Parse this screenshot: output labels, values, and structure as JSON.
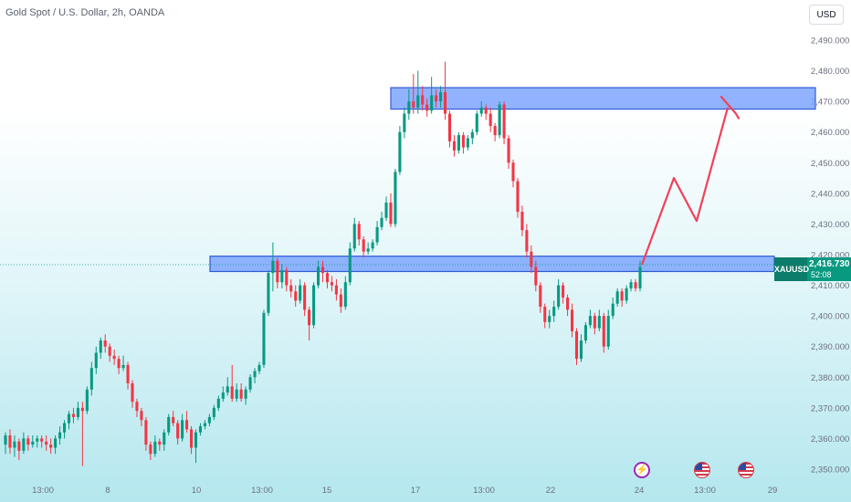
{
  "header": {
    "title": "Gold Spot / U.S. Dollar, 2h, OANDA",
    "currency": "USD"
  },
  "price_label": {
    "symbol": "XAUUSD",
    "price": "2,416.730",
    "countdown": "52:08"
  },
  "events": [
    {
      "icon": "lightning-bolt-icon"
    },
    {
      "icon": "us-flag-icon"
    },
    {
      "icon": "us-flag-icon"
    }
  ],
  "colors": {
    "up": "#089981",
    "down": "#f23645",
    "zone_fill": "#7ea6ff",
    "zone_border": "#2f5bd8",
    "arrow": "#f2405a"
  },
  "chart_data": {
    "type": "candlestick",
    "title": "Gold Spot / U.S. Dollar, 2h, OANDA",
    "y_axis": {
      "side": "right",
      "ylim": [
        2346,
        2497
      ],
      "ticks": [
        "2,350.000",
        "2,360.000",
        "2,370.000",
        "2,380.000",
        "2,390.000",
        "2,400.000",
        "2,410.000",
        "2,420.000",
        "2,430.000",
        "2,440.000",
        "2,450.000",
        "2,460.000",
        "2,470.000",
        "2,480.000",
        "2,490.000"
      ]
    },
    "x_axis": {
      "ticks": [
        "13:00",
        "8",
        "10",
        "13:00",
        "15",
        "17",
        "13:00",
        "22",
        "24",
        "13:00",
        "29"
      ]
    },
    "current_price": 2416.73,
    "zones": [
      {
        "name": "resistance",
        "low": 2467.5,
        "high": 2474.5
      },
      {
        "name": "support",
        "low": 2414.5,
        "high": 2419.5
      }
    ],
    "projection": [
      2416.7,
      2445,
      2431,
      2468,
      2466,
      2471.5,
      2469.5,
      2464.5
    ],
    "candles": [
      [
        2358,
        2361,
        2362,
        2355
      ],
      [
        2361,
        2357,
        2363,
        2355
      ],
      [
        2357,
        2359,
        2361,
        2354
      ],
      [
        2359,
        2356,
        2360,
        2353
      ],
      [
        2356,
        2360,
        2362,
        2355
      ],
      [
        2360,
        2358,
        2361,
        2356
      ],
      [
        2358,
        2359,
        2361,
        2357
      ],
      [
        2359,
        2360,
        2361,
        2357
      ],
      [
        2360,
        2359,
        2361,
        2357
      ],
      [
        2359,
        2358,
        2361,
        2356
      ],
      [
        2358,
        2357,
        2360,
        2355
      ],
      [
        2357,
        2360,
        2361,
        2355
      ],
      [
        2360,
        2362,
        2364,
        2358
      ],
      [
        2362,
        2365,
        2366,
        2360
      ],
      [
        2365,
        2368,
        2369,
        2363
      ],
      [
        2368,
        2367,
        2370,
        2365
      ],
      [
        2367,
        2370,
        2372,
        2366
      ],
      [
        2370,
        2369,
        2372,
        2351
      ],
      [
        2369,
        2376,
        2377,
        2368
      ],
      [
        2376,
        2383,
        2385,
        2374
      ],
      [
        2383,
        2388,
        2390,
        2381
      ],
      [
        2388,
        2392,
        2393,
        2386
      ],
      [
        2392,
        2390,
        2394,
        2388
      ],
      [
        2390,
        2387,
        2391,
        2385
      ],
      [
        2387,
        2386,
        2389,
        2384
      ],
      [
        2386,
        2383,
        2387,
        2381
      ],
      [
        2383,
        2384,
        2387,
        2382
      ],
      [
        2384,
        2378,
        2385,
        2376
      ],
      [
        2378,
        2372,
        2379,
        2370
      ],
      [
        2372,
        2369,
        2373,
        2367
      ],
      [
        2369,
        2366,
        2370,
        2364
      ],
      [
        2366,
        2358,
        2367,
        2356
      ],
      [
        2358,
        2355,
        2359,
        2353
      ],
      [
        2355,
        2359,
        2361,
        2354
      ],
      [
        2359,
        2358,
        2360,
        2356
      ],
      [
        2358,
        2362,
        2363,
        2356
      ],
      [
        2362,
        2367,
        2368,
        2361
      ],
      [
        2367,
        2365,
        2369,
        2364
      ],
      [
        2365,
        2360,
        2366,
        2358
      ],
      [
        2360,
        2366,
        2368,
        2359
      ],
      [
        2366,
        2363,
        2369,
        2362
      ],
      [
        2363,
        2357,
        2364,
        2355
      ],
      [
        2357,
        2362,
        2363,
        2352
      ],
      [
        2362,
        2364,
        2365,
        2361
      ],
      [
        2364,
        2365,
        2366,
        2363
      ],
      [
        2365,
        2367,
        2368,
        2364
      ],
      [
        2367,
        2370,
        2371,
        2366
      ],
      [
        2370,
        2373,
        2374,
        2369
      ],
      [
        2373,
        2375,
        2377,
        2372
      ],
      [
        2375,
        2377,
        2380,
        2374
      ],
      [
        2377,
        2373,
        2384,
        2372
      ],
      [
        2373,
        2376,
        2378,
        2372
      ],
      [
        2376,
        2373,
        2378,
        2372
      ],
      [
        2373,
        2376,
        2377,
        2371
      ],
      [
        2376,
        2380,
        2381,
        2375
      ],
      [
        2380,
        2382,
        2383,
        2378
      ],
      [
        2382,
        2384,
        2385,
        2381
      ],
      [
        2384,
        2401,
        2402,
        2383
      ],
      [
        2401,
        2414,
        2415,
        2400
      ],
      [
        2414,
        2418,
        2424,
        2408
      ],
      [
        2418,
        2411,
        2419,
        2409
      ],
      [
        2411,
        2415,
        2417,
        2409
      ],
      [
        2415,
        2410,
        2416,
        2408
      ],
      [
        2410,
        2408,
        2412,
        2406
      ],
      [
        2408,
        2405,
        2410,
        2403
      ],
      [
        2405,
        2410,
        2412,
        2404
      ],
      [
        2410,
        2402,
        2411,
        2400
      ],
      [
        2402,
        2397,
        2403,
        2392
      ],
      [
        2397,
        2410,
        2411,
        2396
      ],
      [
        2410,
        2416,
        2418,
        2409
      ],
      [
        2416,
        2414,
        2418,
        2411
      ],
      [
        2414,
        2411,
        2415,
        2409
      ],
      [
        2411,
        2410,
        2413,
        2408
      ],
      [
        2410,
        2407,
        2412,
        2405
      ],
      [
        2407,
        2403,
        2409,
        2401
      ],
      [
        2403,
        2411,
        2413,
        2402
      ],
      [
        2411,
        2422,
        2424,
        2410
      ],
      [
        2422,
        2430,
        2432,
        2421
      ],
      [
        2430,
        2425,
        2431,
        2423
      ],
      [
        2425,
        2421,
        2426,
        2419
      ],
      [
        2421,
        2422,
        2424,
        2420
      ],
      [
        2422,
        2424,
        2425,
        2421
      ],
      [
        2424,
        2429,
        2431,
        2423
      ],
      [
        2429,
        2432,
        2434,
        2428
      ],
      [
        2432,
        2437,
        2439,
        2431
      ],
      [
        2437,
        2430,
        2440,
        2429
      ],
      [
        2430,
        2447,
        2448,
        2429
      ],
      [
        2447,
        2460,
        2462,
        2446
      ],
      [
        2460,
        2466,
        2468,
        2458
      ],
      [
        2466,
        2470,
        2474,
        2464
      ],
      [
        2470,
        2468,
        2479,
        2466
      ],
      [
        2468,
        2472,
        2480,
        2466
      ],
      [
        2472,
        2469,
        2475,
        2467
      ],
      [
        2469,
        2467,
        2471,
        2465
      ],
      [
        2467,
        2472,
        2478,
        2466
      ],
      [
        2472,
        2470,
        2474,
        2468
      ],
      [
        2470,
        2473,
        2475,
        2468
      ],
      [
        2473,
        2466,
        2483,
        2464
      ],
      [
        2466,
        2457,
        2467,
        2455
      ],
      [
        2457,
        2454,
        2459,
        2452
      ],
      [
        2454,
        2459,
        2460,
        2453
      ],
      [
        2459,
        2455,
        2460,
        2453
      ],
      [
        2455,
        2458,
        2459,
        2454
      ],
      [
        2458,
        2460,
        2461,
        2456
      ],
      [
        2460,
        2466,
        2467,
        2459
      ],
      [
        2466,
        2468,
        2470,
        2465
      ],
      [
        2468,
        2466,
        2469,
        2464
      ],
      [
        2466,
        2462,
        2468,
        2460
      ],
      [
        2462,
        2459,
        2463,
        2457
      ],
      [
        2459,
        2469,
        2470,
        2458
      ],
      [
        2469,
        2458,
        2470,
        2456
      ],
      [
        2458,
        2450,
        2459,
        2448
      ],
      [
        2450,
        2444,
        2451,
        2442
      ],
      [
        2444,
        2434,
        2445,
        2432
      ],
      [
        2434,
        2428,
        2436,
        2426
      ],
      [
        2428,
        2421,
        2430,
        2419
      ],
      [
        2421,
        2416,
        2423,
        2414
      ],
      [
        2416,
        2410,
        2418,
        2408
      ],
      [
        2410,
        2403,
        2411,
        2401
      ],
      [
        2403,
        2398,
        2404,
        2396
      ],
      [
        2398,
        2400,
        2402,
        2396
      ],
      [
        2400,
        2403,
        2405,
        2398
      ],
      [
        2403,
        2410,
        2412,
        2402
      ],
      [
        2410,
        2406,
        2411,
        2404
      ],
      [
        2406,
        2402,
        2407,
        2400
      ],
      [
        2402,
        2395,
        2404,
        2393
      ],
      [
        2395,
        2386,
        2396,
        2384
      ],
      [
        2386,
        2392,
        2394,
        2385
      ],
      [
        2392,
        2397,
        2398,
        2391
      ],
      [
        2397,
        2400,
        2402,
        2396
      ],
      [
        2400,
        2396,
        2401,
        2394
      ],
      [
        2396,
        2400,
        2402,
        2395
      ],
      [
        2400,
        2390,
        2401,
        2388
      ],
      [
        2390,
        2400,
        2402,
        2389
      ],
      [
        2400,
        2404,
        2406,
        2399
      ],
      [
        2404,
        2408,
        2409,
        2403
      ],
      [
        2408,
        2405,
        2409,
        2403
      ],
      [
        2405,
        2409,
        2410,
        2404
      ],
      [
        2409,
        2411,
        2412,
        2408
      ],
      [
        2411,
        2409,
        2412,
        2408
      ],
      [
        2409,
        2416,
        2418,
        2408
      ]
    ]
  }
}
